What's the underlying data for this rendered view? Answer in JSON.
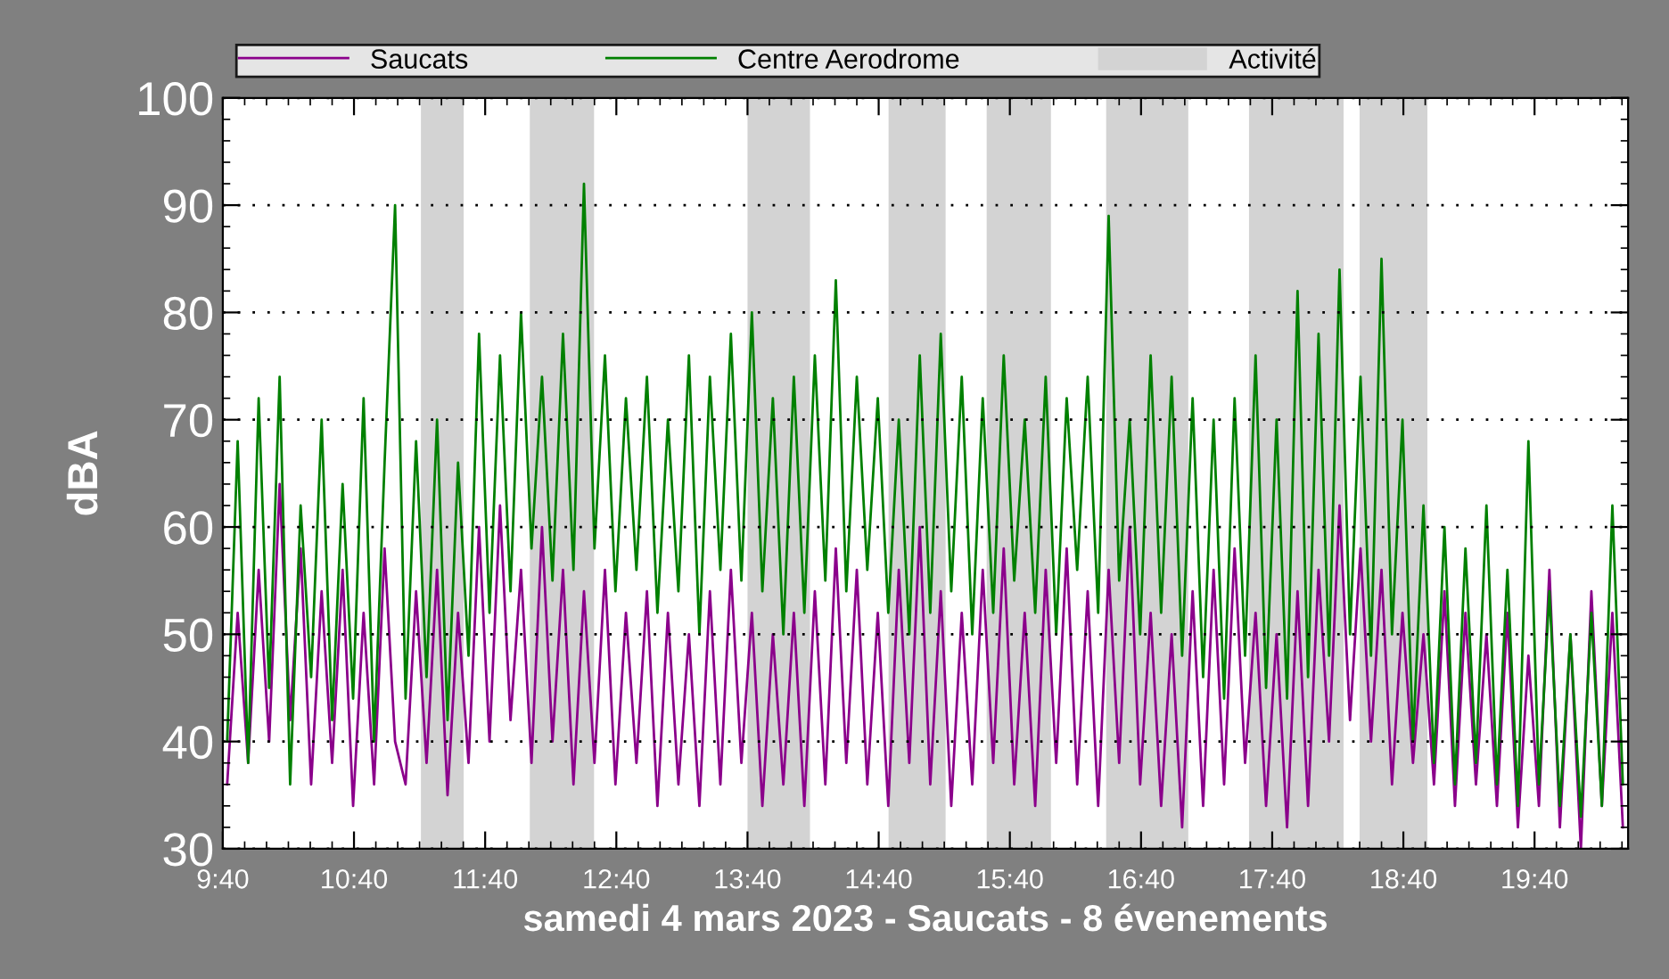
{
  "chart_data": {
    "type": "line",
    "xlabel": "samedi 4 mars 2023 - Saucats - 8 évenements",
    "ylabel": "dBA",
    "xlim": [
      9.6667,
      20.38
    ],
    "xticks": [
      {
        "value": 9.6667,
        "label": "9:40"
      },
      {
        "value": 10.6667,
        "label": "10:40"
      },
      {
        "value": 11.6667,
        "label": "11:40"
      },
      {
        "value": 12.6667,
        "label": "12:40"
      },
      {
        "value": 13.6667,
        "label": "13:40"
      },
      {
        "value": 14.6667,
        "label": "14:40"
      },
      {
        "value": 15.6667,
        "label": "15:40"
      },
      {
        "value": 16.6667,
        "label": "16:40"
      },
      {
        "value": 17.6667,
        "label": "17:40"
      },
      {
        "value": 18.6667,
        "label": "18:40"
      },
      {
        "value": 19.6667,
        "label": "19:40"
      }
    ],
    "ylim": [
      30,
      100
    ],
    "yticks": [
      30,
      40,
      50,
      60,
      70,
      80,
      90,
      100
    ],
    "grid": "y",
    "legend": "top",
    "line_style": "solid",
    "marker": "none",
    "x": [
      9.7,
      9.78,
      9.86,
      9.94,
      10.02,
      10.1,
      10.18,
      10.26,
      10.34,
      10.42,
      10.5,
      10.58,
      10.66,
      10.74,
      10.82,
      10.9,
      10.98,
      11.06,
      11.14,
      11.22,
      11.3,
      11.38,
      11.46,
      11.54,
      11.62,
      11.7,
      11.78,
      11.86,
      11.94,
      12.02,
      12.1,
      12.18,
      12.26,
      12.34,
      12.42,
      12.5,
      12.58,
      12.66,
      12.74,
      12.82,
      12.9,
      12.98,
      13.06,
      13.14,
      13.22,
      13.3,
      13.38,
      13.46,
      13.54,
      13.62,
      13.7,
      13.78,
      13.86,
      13.94,
      14.02,
      14.1,
      14.18,
      14.26,
      14.34,
      14.42,
      14.5,
      14.58,
      14.66,
      14.74,
      14.82,
      14.9,
      14.98,
      15.06,
      15.14,
      15.22,
      15.3,
      15.38,
      15.46,
      15.54,
      15.62,
      15.7,
      15.78,
      15.86,
      15.94,
      16.02,
      16.1,
      16.18,
      16.26,
      16.34,
      16.42,
      16.5,
      16.58,
      16.66,
      16.74,
      16.82,
      16.9,
      16.98,
      17.06,
      17.14,
      17.22,
      17.3,
      17.38,
      17.46,
      17.54,
      17.62,
      17.7,
      17.78,
      17.86,
      17.94,
      18.02,
      18.1,
      18.18,
      18.26,
      18.34,
      18.42,
      18.5,
      18.58,
      18.66,
      18.74,
      18.82,
      18.9,
      18.98,
      19.06,
      19.14,
      19.22,
      19.3,
      19.38,
      19.46,
      19.54,
      19.62,
      19.7,
      19.78,
      19.86,
      19.94,
      20.02,
      20.1,
      20.18,
      20.26,
      20.34
    ],
    "series": [
      {
        "name": "Saucats",
        "color": "#8b008b",
        "values": [
          36,
          52,
          38,
          56,
          40,
          64,
          42,
          58,
          36,
          54,
          38,
          56,
          34,
          52,
          36,
          58,
          40,
          36,
          54,
          38,
          56,
          35,
          52,
          38,
          60,
          40,
          62,
          42,
          56,
          38,
          60,
          40,
          56,
          36,
          54,
          38,
          56,
          36,
          52,
          38,
          54,
          34,
          52,
          36,
          50,
          34,
          54,
          36,
          56,
          38,
          52,
          34,
          50,
          36,
          52,
          34,
          54,
          36,
          58,
          38,
          56,
          36,
          52,
          34,
          56,
          38,
          60,
          36,
          54,
          34,
          52,
          36,
          56,
          38,
          58,
          36,
          52,
          34,
          56,
          38,
          58,
          36,
          54,
          34,
          56,
          38,
          60,
          36,
          52,
          34,
          50,
          32,
          54,
          34,
          56,
          36,
          58,
          38,
          52,
          34,
          50,
          32,
          54,
          34,
          56,
          40,
          62,
          42,
          58,
          40,
          56,
          36,
          52,
          38,
          50,
          36,
          54,
          34,
          52,
          36,
          50,
          34,
          52,
          32,
          48,
          34,
          56,
          32,
          50,
          30,
          54,
          34,
          52,
          32
        ]
      },
      {
        "name": "Centre Aerodrome",
        "color": "#008000",
        "values": [
          40,
          68,
          38,
          72,
          45,
          74,
          36,
          62,
          46,
          70,
          42,
          64,
          44,
          72,
          40,
          66,
          90,
          44,
          68,
          46,
          70,
          42,
          66,
          48,
          78,
          52,
          76,
          54,
          80,
          58,
          74,
          55,
          78,
          56,
          92,
          58,
          76,
          54,
          72,
          56,
          74,
          52,
          70,
          54,
          76,
          50,
          74,
          56,
          78,
          55,
          80,
          54,
          72,
          50,
          74,
          52,
          76,
          55,
          83,
          54,
          74,
          56,
          72,
          52,
          70,
          50,
          76,
          52,
          78,
          54,
          74,
          50,
          72,
          52,
          76,
          55,
          70,
          52,
          74,
          50,
          72,
          56,
          74,
          52,
          89,
          55,
          70,
          50,
          76,
          52,
          74,
          48,
          72,
          46,
          70,
          44,
          72,
          48,
          76,
          45,
          70,
          44,
          82,
          46,
          78,
          48,
          84,
          50,
          74,
          48,
          85,
          50,
          70,
          40,
          62,
          38,
          60,
          36,
          58,
          38,
          62,
          36,
          56,
          34,
          68,
          36,
          54,
          34,
          50,
          33,
          52,
          34,
          62,
          36
        ]
      }
    ],
    "bands": [
      {
        "axis": "x",
        "from": 11.177,
        "to": 11.503,
        "label": "Activité",
        "color": "#d3d3d3"
      },
      {
        "axis": "x",
        "from": 12.007,
        "to": 12.497,
        "color": "#d3d3d3"
      },
      {
        "axis": "x",
        "from": 13.667,
        "to": 14.143,
        "color": "#d3d3d3"
      },
      {
        "axis": "x",
        "from": 14.742,
        "to": 15.177,
        "color": "#d3d3d3"
      },
      {
        "axis": "x",
        "from": 15.49,
        "to": 15.98,
        "color": "#d3d3d3"
      },
      {
        "axis": "x",
        "from": 16.401,
        "to": 17.027,
        "color": "#d3d3d3"
      },
      {
        "axis": "x",
        "from": 17.49,
        "to": 18.211,
        "color": "#d3d3d3"
      },
      {
        "axis": "x",
        "from": 18.333,
        "to": 18.85,
        "color": "#d3d3d3"
      }
    ]
  }
}
